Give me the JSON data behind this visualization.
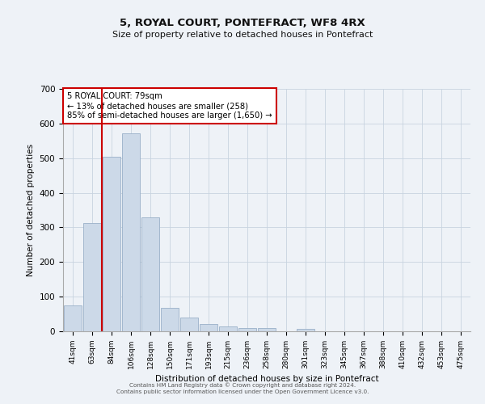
{
  "title": "5, ROYAL COURT, PONTEFRACT, WF8 4RX",
  "subtitle": "Size of property relative to detached houses in Pontefract",
  "xlabel": "Distribution of detached houses by size in Pontefract",
  "ylabel": "Number of detached properties",
  "bar_labels": [
    "41sqm",
    "63sqm",
    "84sqm",
    "106sqm",
    "128sqm",
    "150sqm",
    "171sqm",
    "193sqm",
    "215sqm",
    "236sqm",
    "258sqm",
    "280sqm",
    "301sqm",
    "323sqm",
    "345sqm",
    "367sqm",
    "388sqm",
    "410sqm",
    "432sqm",
    "453sqm",
    "475sqm"
  ],
  "bar_values": [
    75,
    313,
    505,
    572,
    328,
    68,
    40,
    20,
    15,
    10,
    10,
    0,
    8,
    0,
    0,
    0,
    0,
    0,
    0,
    0,
    0
  ],
  "bar_color": "#ccd9e8",
  "bar_edge_color": "#9ab0c8",
  "ylim": [
    0,
    700
  ],
  "yticks": [
    0,
    100,
    200,
    300,
    400,
    500,
    600,
    700
  ],
  "vline_color": "#cc0000",
  "annotation_title": "5 ROYAL COURT: 79sqm",
  "annotation_line1": "← 13% of detached houses are smaller (258)",
  "annotation_line2": "85% of semi-detached houses are larger (1,650) →",
  "annotation_box_color": "#ffffff",
  "annotation_box_edge": "#cc0000",
  "footer1": "Contains HM Land Registry data © Crown copyright and database right 2024.",
  "footer2": "Contains public sector information licensed under the Open Government Licence v3.0.",
  "background_color": "#eef2f7",
  "grid_color": "#c8d4e0"
}
